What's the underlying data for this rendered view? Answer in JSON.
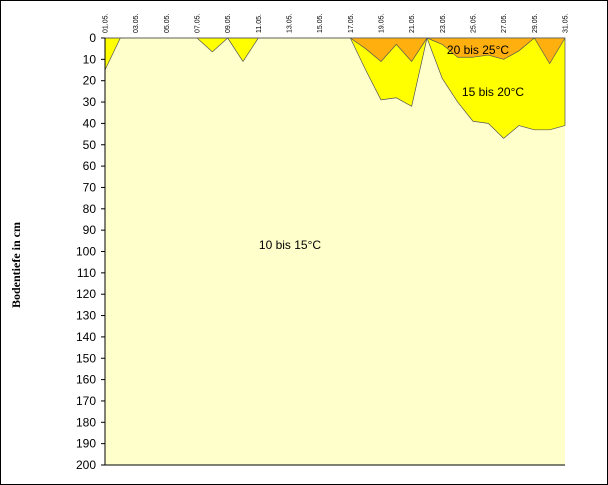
{
  "chart_data": {
    "type": "area",
    "y_label": "Bodentiefe in cm",
    "categories": [
      "01.05.",
      null,
      "03.05.",
      null,
      "05.05.",
      null,
      "07.05.",
      null,
      "09.05.",
      null,
      "11.05.",
      null,
      "13.05.",
      null,
      "15.05.",
      null,
      "17.05.",
      null,
      "19.05.",
      null,
      "21.05.",
      null,
      "23.05.",
      null,
      "25.05.",
      null,
      "27.05.",
      null,
      "29.05.",
      null,
      "31.05."
    ],
    "background_region": {
      "label": "10 bis 15°C",
      "color": "#ffffcc"
    },
    "series": [
      {
        "name": "15 bis 20°C",
        "color": "#ffff00",
        "values": [
          15,
          0,
          0,
          0,
          0,
          0,
          0,
          6.5,
          0,
          11,
          0,
          0,
          0,
          0,
          0,
          0,
          0,
          15,
          29,
          28,
          32,
          0,
          19,
          30,
          39,
          40,
          47,
          41,
          43,
          43,
          41
        ]
      },
      {
        "name": "20 bis 25°C",
        "color": "#ffb00f",
        "values": [
          0,
          0,
          0,
          0,
          0,
          0,
          0,
          0,
          0,
          0,
          0,
          0,
          0,
          0,
          0,
          0,
          0,
          5,
          11,
          3,
          11,
          0,
          3,
          9,
          9,
          8,
          10,
          6,
          0,
          12,
          0
        ]
      }
    ],
    "ylim": [
      0,
      200
    ],
    "y_reversed": true,
    "yticks": [
      0,
      10,
      20,
      30,
      40,
      50,
      60,
      70,
      80,
      90,
      100,
      110,
      120,
      130,
      140,
      150,
      160,
      170,
      180,
      190,
      200
    ]
  }
}
